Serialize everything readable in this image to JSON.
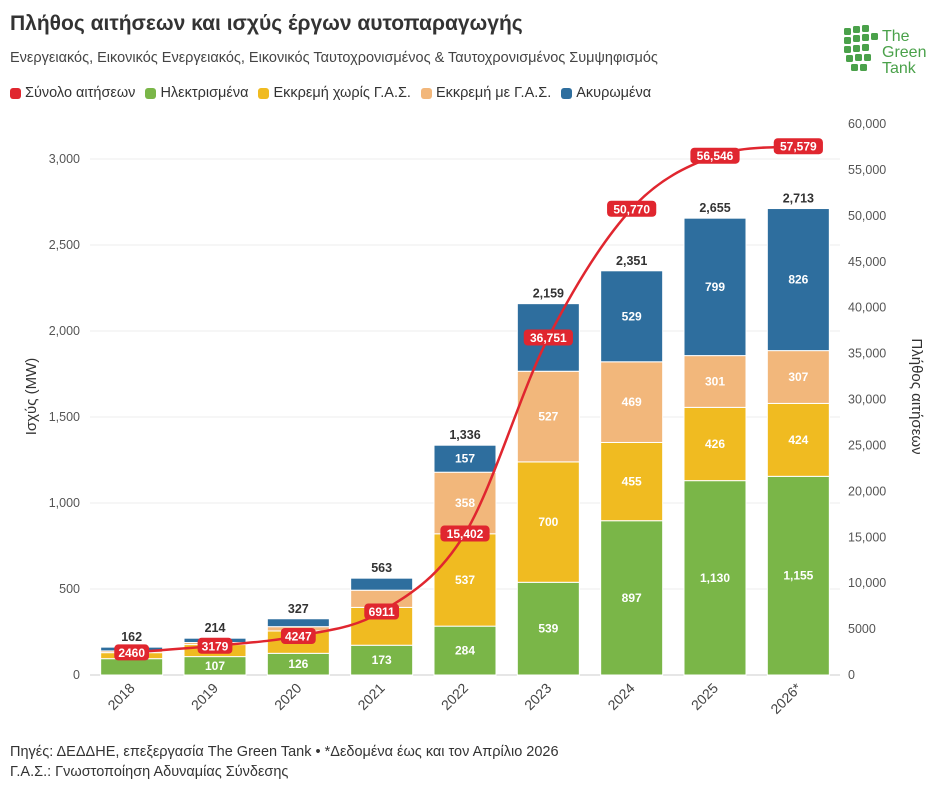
{
  "header": {
    "title": "Πλήθος αιτήσεων και ισχύς έργων αυτοπαραγωγής",
    "subtitle": "Ενεργειακός, Εικονικός Ενεργειακός, Εικονικός Ταυτοχρονισμένος & Ταυτοχρονισμένος Συμψηφισμός"
  },
  "logo": {
    "line1": "The",
    "line2": "Green",
    "line3": "Tank",
    "icon": "leaf-grid-icon",
    "color": "#4aa14a"
  },
  "legend": [
    {
      "label": "Σύνολο αιτήσεων",
      "color": "#e0262f"
    },
    {
      "label": "Ηλεκτρισμένα",
      "color": "#7ab648"
    },
    {
      "label": "Εκκρεμή χωρίς Γ.Α.Σ.",
      "color": "#f0bb21"
    },
    {
      "label": "Εκκρεμή με Γ.Α.Σ.",
      "color": "#f2b77b"
    },
    {
      "label": "Ακυρωμένα",
      "color": "#2e6e9e"
    }
  ],
  "footer": {
    "line1": "Πηγές: ΔΕΔΔΗΕ, επεξεργασία The Green Tank • *Δεδομένα έως και τον Απρίλιο 2026",
    "line2": "Γ.Α.Σ.: Γνωστοποίηση Αδυναμίας Σύνδεσης"
  },
  "chart_data": {
    "type": "bar",
    "stacked": true,
    "categories": [
      "2018",
      "2019",
      "2020",
      "2021",
      "2022",
      "2023",
      "2024",
      "2025",
      "2026*"
    ],
    "ylabel": "Ισχύς (MW)",
    "y2label": "Πλήθος αιτήσεων",
    "ylim": [
      0,
      3200
    ],
    "y2lim": [
      0,
      60000
    ],
    "yticks": [
      "0",
      "500",
      "1,000",
      "1,500",
      "2,000",
      "2,500",
      "3,000"
    ],
    "y2ticks": [
      "0",
      "5000",
      "10,000",
      "15,000",
      "20,000",
      "25,000",
      "30,000",
      "35,000",
      "40,000",
      "45,000",
      "50,000",
      "55,000",
      "60,000"
    ],
    "series": [
      {
        "name": "Ηλεκτρισμένα",
        "color": "#7ab648",
        "values": [
          95,
          107,
          126,
          173,
          284,
          539,
          897,
          1130,
          1155
        ],
        "labels": [
          "",
          "107",
          "126",
          "173",
          "284",
          "539",
          "897",
          "1,130",
          "1,155"
        ]
      },
      {
        "name": "Εκκρεμή χωρίς Γ.Α.Σ.",
        "color": "#f0bb21",
        "values": [
          35,
          70,
          130,
          220,
          537,
          700,
          455,
          426,
          424
        ],
        "labels": [
          "",
          "",
          "",
          "",
          "537",
          "700",
          "455",
          "426",
          "424"
        ]
      },
      {
        "name": "Εκκρεμή με Γ.Α.Σ.",
        "color": "#f2b77b",
        "values": [
          10,
          12,
          25,
          100,
          358,
          527,
          469,
          301,
          307
        ],
        "labels": [
          "",
          "",
          "",
          "",
          "358",
          "527",
          "469",
          "301",
          "307"
        ]
      },
      {
        "name": "Ακυρωμένα",
        "color": "#2e6e9e",
        "values": [
          22,
          25,
          46,
          70,
          157,
          393,
          529,
          799,
          826
        ],
        "labels": [
          "",
          "",
          "",
          "",
          "157",
          "",
          "529",
          "799",
          "826"
        ]
      }
    ],
    "totals": [
      "162",
      "214",
      "327",
      "563",
      "1,336",
      "2,159",
      "2,351",
      "2,655",
      "2,713"
    ],
    "line": {
      "name": "Σύνολο αιτήσεων",
      "color": "#e0262f",
      "axis": "right",
      "values": [
        2460,
        3179,
        4247,
        6911,
        15402,
        36751,
        50770,
        56546,
        57579
      ],
      "labels": [
        "2460",
        "3179",
        "4247",
        "6911",
        "15,402",
        "36,751",
        "50,770",
        "56,546",
        "57,579"
      ]
    },
    "grid": true
  }
}
